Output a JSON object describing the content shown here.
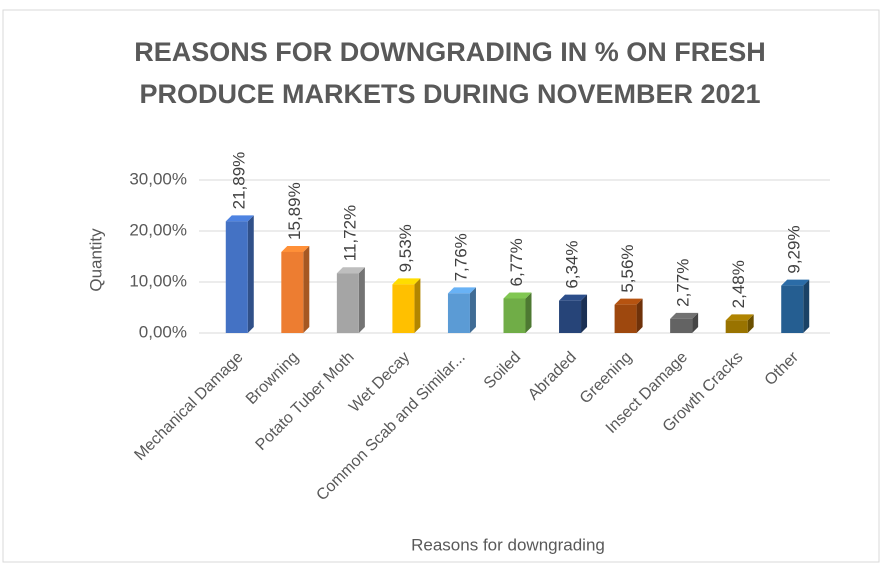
{
  "chart_data": {
    "type": "bar",
    "title": [
      "REASONS FOR DOWNGRADING IN % ON FRESH",
      "PRODUCE MARKETS DURING NOVEMBER 2021"
    ],
    "x_label": "Reasons for downgrading",
    "y_label": "Quantity",
    "categories": [
      "Mechanical Damage",
      "Browning",
      "Potato Tuber Moth",
      "Wet Decay",
      "Common Scab and Similar...",
      "Soiled",
      "Abraded",
      "Greening",
      "Insect Damage",
      "Growth Cracks",
      "Other"
    ],
    "values": [
      21.89,
      15.89,
      11.72,
      9.53,
      7.76,
      6.77,
      6.34,
      5.56,
      2.77,
      2.48,
      9.29
    ],
    "value_labels": [
      "21,89%",
      "15,89%",
      "11,72%",
      "9,53%",
      "7,76%",
      "6,77%",
      "6,34%",
      "5,56%",
      "2,77%",
      "2,48%",
      "9,29%"
    ],
    "colors": [
      "#4472c4",
      "#ed7d31",
      "#a5a5a5",
      "#ffc000",
      "#5b9bd5",
      "#70ad47",
      "#264478",
      "#9e480e",
      "#636363",
      "#997300",
      "#255e91"
    ],
    "ylim": [
      0,
      30
    ],
    "yticks": [
      {
        "value": 0,
        "label": "0,00%"
      },
      {
        "value": 10,
        "label": "10,00%"
      },
      {
        "value": 20,
        "label": "20,00%"
      },
      {
        "value": 30,
        "label": "30,00%"
      }
    ],
    "grid": true
  }
}
